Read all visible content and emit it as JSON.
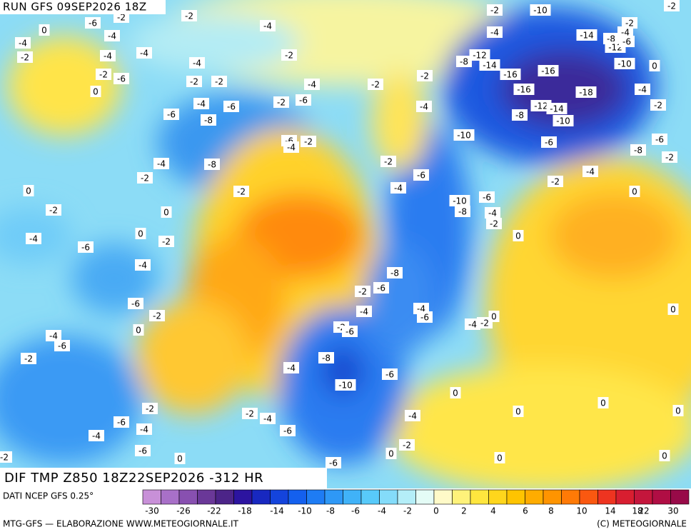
{
  "header": {
    "run": "RUN GFS 09SEP2026 18Z",
    "field": "DIF TMP Z850 18Z22SEP2026 -312 HR"
  },
  "map": {
    "contour_labels": [
      "-2",
      "-6",
      "-2",
      "0",
      "-4",
      "-4",
      "-4",
      "-2",
      "-4",
      "-4",
      "-2",
      "-4",
      "-2",
      "-6",
      "0",
      "-2",
      "-2",
      "-4",
      "-2",
      "-2",
      "-4",
      "-6",
      "-2",
      "-6",
      "-6",
      "-8",
      "-4",
      "-6",
      "-4",
      "-2",
      "-4",
      "-8",
      "-2",
      "-2",
      "-2",
      "0",
      "-2",
      "0",
      "0",
      "-2",
      "-4",
      "-6",
      "-4",
      "-6",
      "-2",
      "0",
      "-4",
      "-6",
      "-2",
      "-2",
      "-6",
      "-4",
      "-4",
      "-6",
      "0",
      "-2",
      "-2",
      "-4",
      "-6",
      "-4",
      "-2",
      "0",
      "-6",
      "-10",
      "-8",
      "-4",
      "-6",
      "-2",
      "-6",
      "-2",
      "-6",
      "-4",
      "-8",
      "-4",
      "-6",
      "-4",
      "-2",
      "0",
      "0",
      "0",
      "0",
      "0",
      "0",
      "0",
      "0",
      "0",
      "-2",
      "-4",
      "-8",
      "-10",
      "-6",
      "-6",
      "-4",
      "-2",
      "-4",
      "0",
      "-10",
      "-6",
      "-8",
      "-6",
      "-2",
      "-8",
      "-12",
      "-14",
      "-10",
      "-16",
      "-18",
      "-16",
      "-16",
      "-14",
      "-12",
      "-8",
      "-10",
      "-4",
      "-2",
      "-14",
      "-8",
      "-12",
      "-4",
      "-6",
      "-2",
      "-4",
      "-2",
      "-10",
      "-2",
      "0"
    ]
  },
  "legend": {
    "source": "DATI NCEP GFS 0.25°",
    "colors": [
      "#c890d8",
      "#a870c8",
      "#8850b0",
      "#6a3898",
      "#4c2488",
      "#2c14a0",
      "#1828c0",
      "#1444dc",
      "#1460ee",
      "#1e7cf4",
      "#2e98f6",
      "#40b2f8",
      "#58cafa",
      "#84dcfa",
      "#b4eef8",
      "#e4fcf6",
      "#fffac8",
      "#fff27a",
      "#ffe63e",
      "#ffd61c",
      "#ffc400",
      "#ffac00",
      "#ff9400",
      "#ff7a06",
      "#fa5810",
      "#ee3420",
      "#d81e30",
      "#c4163c",
      "#b00e44",
      "#980a48"
    ],
    "ticks": [
      -30,
      -26,
      -22,
      -18,
      -14,
      -10,
      -8,
      -6,
      -4,
      -2,
      0,
      2,
      4,
      6,
      8,
      10,
      14,
      18,
      22,
      30
    ]
  },
  "footer": {
    "left": "MTG-GFS — ELABORAZIONE WWW.METEOGIORNALE.IT",
    "right": "(C) METEOGIORNALE"
  }
}
